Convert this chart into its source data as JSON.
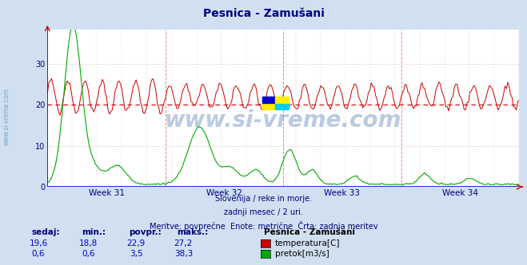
{
  "title": "Pesnica - Zamušani",
  "title_color": "#000080",
  "bg_color": "#d0e0f0",
  "plot_bg_color": "#ffffff",
  "grid_color": "#d8b8b8",
  "xlabel_weeks": [
    "Week 31",
    "Week 32",
    "Week 33",
    "Week 34"
  ],
  "yticks": [
    0,
    10,
    20,
    30
  ],
  "ylim": [
    0,
    38.5
  ],
  "avg_line_value": 20.0,
  "avg_line_color": "#cc0000",
  "temp_color": "#cc0000",
  "flow_color": "#00aa00",
  "watermark_text": "www.si-vreme.com",
  "watermark_color": "#3a6aaa",
  "footer_line1": "Slovenija / reke in morje.",
  "footer_line2": "zadnji mesec / 2 uri.",
  "footer_line3": "Meritve: povprečne  Enote: metrične  Črta: zadnja meritev",
  "footer_color": "#000080",
  "table_headers": [
    "sedaj:",
    "min.:",
    "povpr.:",
    "maks.:"
  ],
  "table_header_color": "#000080",
  "table_values": [
    [
      "19,6",
      "18,8",
      "22,9",
      "27,2"
    ],
    [
      "0,6",
      "0,6",
      "3,5",
      "38,3"
    ]
  ],
  "table_values_color": "#0000cc",
  "legend_title": "Pesnica - Zamušani",
  "legend_labels": [
    "temperatura[C]",
    "pretok[m3/s]"
  ],
  "legend_colors": [
    "#cc0000",
    "#00aa00"
  ],
  "vline_color": "#dd8888",
  "vline_positions": [
    0.25,
    0.5,
    0.75
  ],
  "n_points": 336,
  "arrow_color": "#cc0000",
  "axis_color": "#0000cc",
  "left_label": "www.si-vreme.com",
  "left_label_color": "#5588bb"
}
